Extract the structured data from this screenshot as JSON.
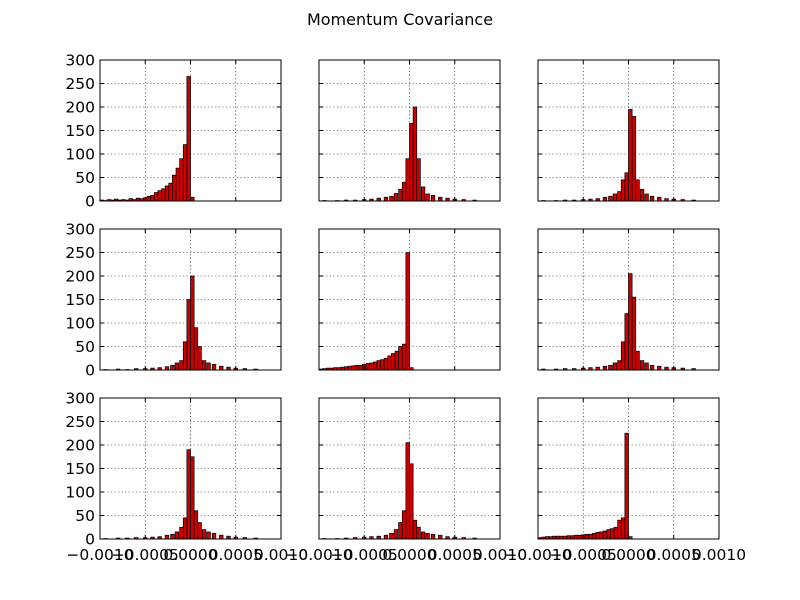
{
  "chart_data": {
    "type": "bar",
    "title": "Momentum Covariance",
    "layout": {
      "rows": 3,
      "cols": 3,
      "sharex": true,
      "sharey": true
    },
    "xlim": [
      -0.001,
      0.001
    ],
    "ylim": [
      0,
      300
    ],
    "grid": true,
    "bar_color": "#cc0000",
    "edge_color": "#000000",
    "xticks": [
      -0.001,
      -0.0005,
      0.0,
      0.0005,
      0.001
    ],
    "xtick_labels": [
      "−0.0010",
      "−0.0005",
      "0.0000",
      "0.0005",
      "0.0010"
    ],
    "yticks": [
      0,
      50,
      100,
      150,
      200,
      250,
      300
    ],
    "ytick_labels": [
      "0",
      "50",
      "100",
      "150",
      "200",
      "250",
      "300"
    ],
    "subplots": [
      {
        "label": "row1-col1",
        "x": [
          -0.00098,
          -0.00094,
          -0.0009,
          -0.00086,
          -0.00082,
          -0.00078,
          -0.00074,
          -0.0007,
          -0.00066,
          -0.00062,
          -0.00058,
          -0.00054,
          -0.0005,
          -0.00046,
          -0.00042,
          -0.00038,
          -0.00034,
          -0.0003,
          -0.00026,
          -0.00022,
          -0.00018,
          -0.00014,
          -0.0001,
          -6e-05,
          -2e-05,
          2e-05
        ],
        "values": [
          2,
          1,
          3,
          2,
          4,
          2,
          3,
          2,
          5,
          3,
          6,
          5,
          7,
          10,
          12,
          18,
          22,
          26,
          32,
          38,
          55,
          70,
          90,
          120,
          265,
          8
        ]
      },
      {
        "label": "row1-col2",
        "x": [
          -0.00094,
          -0.0008,
          -0.0007,
          -0.0006,
          -0.0005,
          -0.00042,
          -0.00034,
          -0.00026,
          -0.0002,
          -0.00015,
          -0.0001,
          -6e-05,
          -2e-05,
          2e-05,
          6e-05,
          0.0001,
          0.00015,
          0.0002,
          0.00026,
          0.00034,
          0.00042,
          0.0005,
          0.0006,
          0.00072
        ],
        "values": [
          1,
          1,
          2,
          2,
          3,
          4,
          6,
          8,
          10,
          16,
          25,
          40,
          90,
          165,
          200,
          90,
          30,
          15,
          12,
          8,
          6,
          4,
          3,
          2
        ]
      },
      {
        "label": "row1-col3",
        "x": [
          -0.00094,
          -0.0008,
          -0.0007,
          -0.0006,
          -0.0005,
          -0.00042,
          -0.00034,
          -0.00026,
          -0.0002,
          -0.00015,
          -0.0001,
          -6e-05,
          -2e-05,
          2e-05,
          6e-05,
          0.0001,
          0.00015,
          0.0002,
          0.00026,
          0.00034,
          0.00042,
          0.0005,
          0.0006,
          0.00072
        ],
        "values": [
          1,
          1,
          2,
          2,
          3,
          4,
          5,
          8,
          10,
          15,
          20,
          45,
          60,
          195,
          180,
          45,
          25,
          15,
          10,
          8,
          5,
          4,
          3,
          2
        ]
      },
      {
        "label": "row2-col1",
        "x": [
          -0.00094,
          -0.0008,
          -0.0007,
          -0.0006,
          -0.0005,
          -0.00042,
          -0.00034,
          -0.00026,
          -0.0002,
          -0.00015,
          -0.0001,
          -6e-05,
          -2e-05,
          2e-05,
          6e-05,
          0.0001,
          0.00015,
          0.0002,
          0.00026,
          0.00034,
          0.00042,
          0.0005,
          0.0006,
          0.00072
        ],
        "values": [
          1,
          2,
          1,
          3,
          3,
          4,
          5,
          7,
          10,
          15,
          20,
          60,
          150,
          200,
          90,
          50,
          20,
          15,
          12,
          8,
          6,
          4,
          3,
          2
        ]
      },
      {
        "label": "row2-col2",
        "x": [
          -0.00098,
          -0.00094,
          -0.0009,
          -0.00086,
          -0.00082,
          -0.00078,
          -0.00074,
          -0.0007,
          -0.00066,
          -0.00062,
          -0.00058,
          -0.00054,
          -0.0005,
          -0.00046,
          -0.00042,
          -0.00038,
          -0.00034,
          -0.0003,
          -0.00026,
          -0.00022,
          -0.00018,
          -0.00014,
          -0.0001,
          -6e-05,
          -2e-05,
          2e-05
        ],
        "values": [
          2,
          3,
          4,
          4,
          5,
          5,
          6,
          7,
          8,
          9,
          10,
          10,
          12,
          14,
          15,
          17,
          20,
          22,
          25,
          30,
          35,
          40,
          50,
          55,
          250,
          5
        ]
      },
      {
        "label": "row2-col3",
        "x": [
          -0.00094,
          -0.0008,
          -0.0007,
          -0.0006,
          -0.0005,
          -0.00042,
          -0.00034,
          -0.00026,
          -0.0002,
          -0.00015,
          -0.0001,
          -6e-05,
          -2e-05,
          2e-05,
          6e-05,
          0.0001,
          0.00015,
          0.0002,
          0.00026,
          0.00034,
          0.00042,
          0.0005,
          0.0006,
          0.00072
        ],
        "values": [
          2,
          2,
          3,
          3,
          4,
          5,
          6,
          8,
          10,
          15,
          20,
          60,
          120,
          205,
          155,
          40,
          20,
          15,
          10,
          8,
          6,
          5,
          4,
          3
        ]
      },
      {
        "label": "row3-col1",
        "x": [
          -0.00094,
          -0.0008,
          -0.0007,
          -0.0006,
          -0.0005,
          -0.00042,
          -0.00034,
          -0.00026,
          -0.0002,
          -0.00015,
          -0.0001,
          -6e-05,
          -2e-05,
          2e-05,
          6e-05,
          0.0001,
          0.00015,
          0.0002,
          0.00026,
          0.00034,
          0.00042,
          0.0005,
          0.0006,
          0.00072
        ],
        "values": [
          1,
          2,
          2,
          3,
          3,
          4,
          5,
          8,
          10,
          15,
          25,
          45,
          190,
          175,
          60,
          35,
          20,
          15,
          12,
          8,
          6,
          4,
          3,
          2
        ]
      },
      {
        "label": "row3-col2",
        "x": [
          -0.00094,
          -0.0008,
          -0.0007,
          -0.0006,
          -0.0005,
          -0.00042,
          -0.00034,
          -0.00026,
          -0.0002,
          -0.00015,
          -0.0001,
          -6e-05,
          -2e-05,
          2e-05,
          6e-05,
          0.0001,
          0.00015,
          0.0002,
          0.00026,
          0.00034,
          0.00042,
          0.0005,
          0.0006,
          0.00072
        ],
        "values": [
          1,
          1,
          2,
          3,
          4,
          5,
          6,
          8,
          12,
          20,
          35,
          60,
          205,
          160,
          40,
          25,
          15,
          12,
          10,
          8,
          5,
          4,
          3,
          2
        ]
      },
      {
        "label": "row3-col3",
        "x": [
          -0.00098,
          -0.00094,
          -0.0009,
          -0.00086,
          -0.00082,
          -0.00078,
          -0.00074,
          -0.0007,
          -0.00066,
          -0.00062,
          -0.00058,
          -0.00054,
          -0.0005,
          -0.00046,
          -0.00042,
          -0.00038,
          -0.00034,
          -0.0003,
          -0.00026,
          -0.00022,
          -0.00018,
          -0.00014,
          -0.0001,
          -6e-05,
          -2e-05,
          2e-05
        ],
        "values": [
          3,
          4,
          5,
          5,
          6,
          6,
          6,
          6,
          7,
          7,
          8,
          8,
          9,
          10,
          10,
          12,
          14,
          15,
          17,
          20,
          22,
          25,
          40,
          45,
          225,
          5
        ]
      }
    ]
  }
}
